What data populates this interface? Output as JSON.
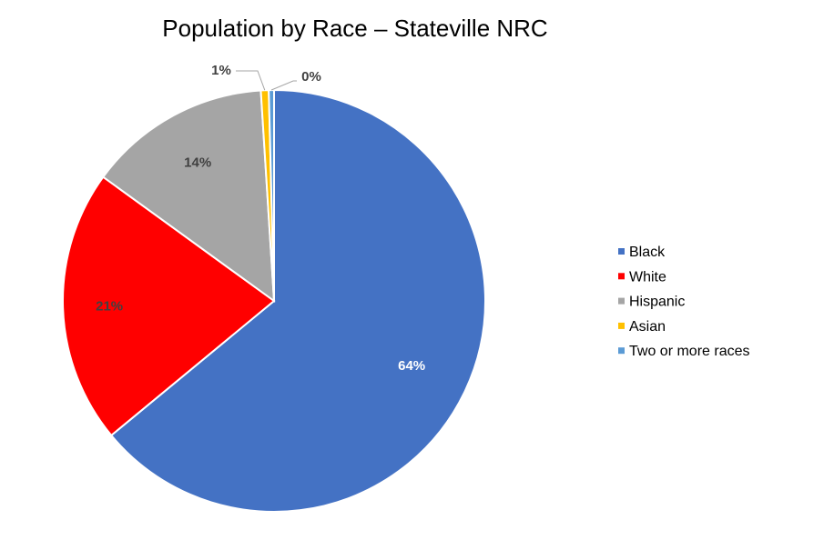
{
  "chart_data": {
    "type": "pie",
    "title": "Population by Race – Stateville NRC",
    "categories": [
      "Black",
      "White",
      "Hispanic",
      "Asian",
      "Two or more races"
    ],
    "values": [
      64,
      21,
      14,
      0.6,
      0.4
    ],
    "data_labels": [
      "64%",
      "21%",
      "14%",
      "1%",
      "0%"
    ],
    "colors": [
      "#4472C4",
      "#FF0000",
      "#A5A5A5",
      "#FFC000",
      "#5B9BD5"
    ],
    "label_colors": [
      "#FFFFFF",
      "#404040",
      "#404040",
      "#404040",
      "#404040"
    ],
    "legend_position": "right",
    "start_angle": "12 o'clock, clockwise"
  }
}
